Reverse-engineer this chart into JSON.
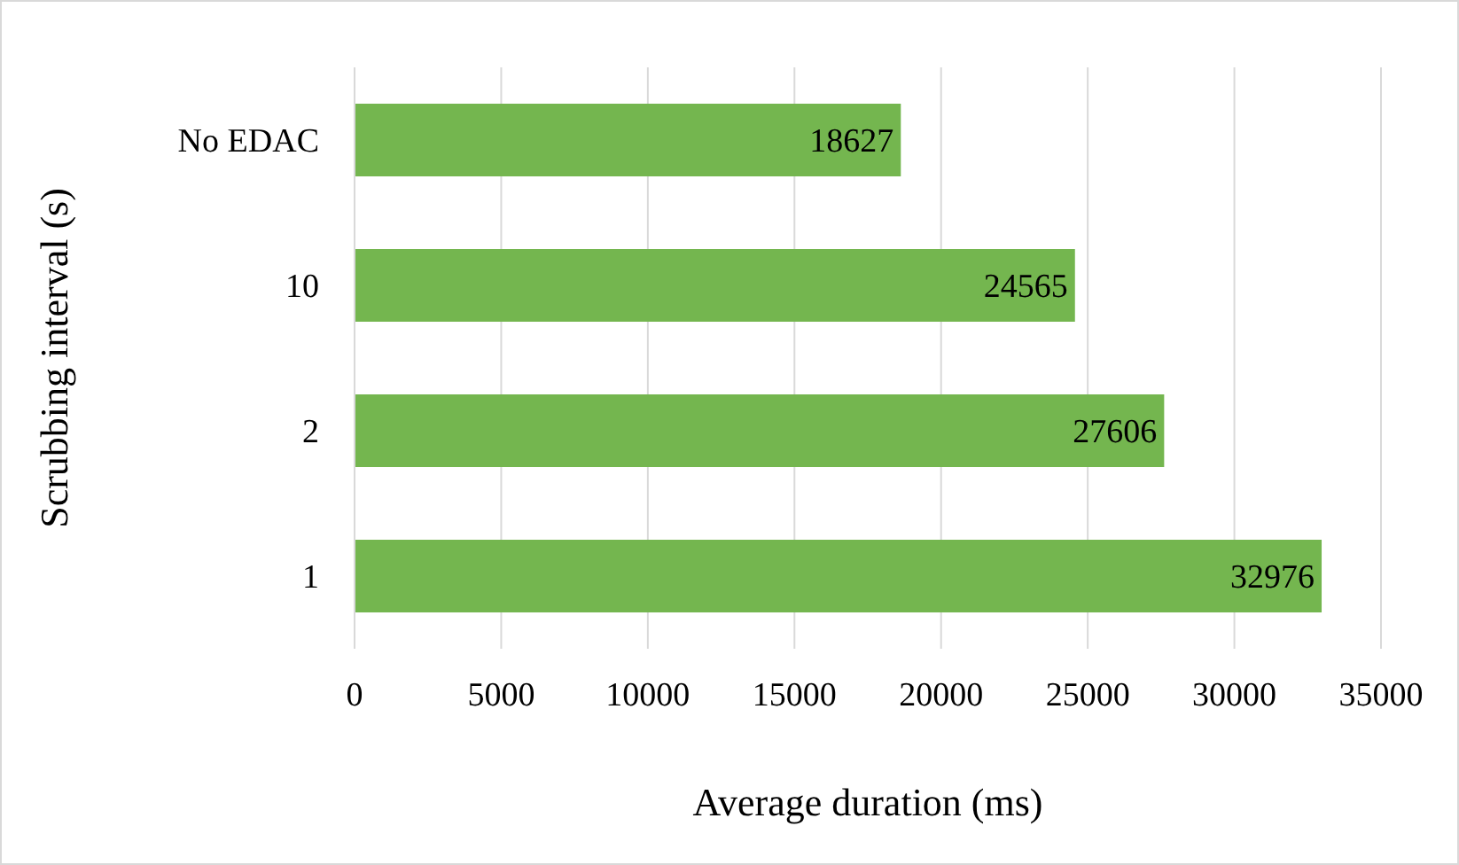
{
  "chart_data": {
    "type": "bar",
    "orientation": "horizontal",
    "xlabel": "Average duration (ms)",
    "ylabel": "Scrubbing interval (s)",
    "categories": [
      "No EDAC",
      "10",
      "2",
      "1"
    ],
    "values": [
      18627,
      24565,
      27606,
      32976
    ],
    "color": "#74b64f",
    "xlim": [
      0,
      35000
    ],
    "xticks": [
      0,
      5000,
      10000,
      15000,
      20000,
      25000,
      30000,
      35000
    ],
    "grid": "x",
    "data_labels": true
  }
}
